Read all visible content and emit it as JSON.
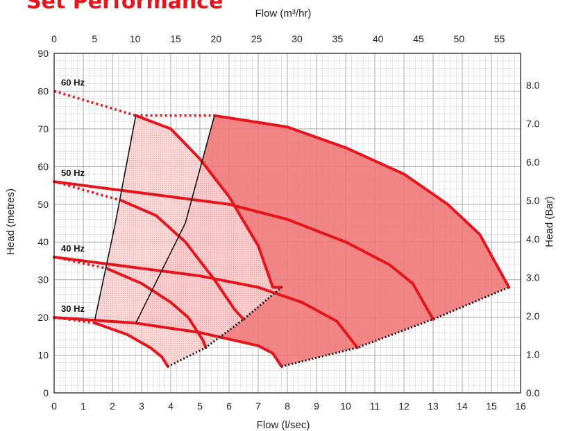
{
  "chart_data": {
    "type": "line",
    "title": "Set Performance",
    "xlabel_bottom": "Flow (l/sec)",
    "xlabel_top": "Flow (m³/hr)",
    "ylabel_left": "Head (metres)",
    "ylabel_right": "Head (Bar)",
    "x_ticks_bottom": [
      "0",
      "1",
      "2",
      "3",
      "4",
      "5",
      "6",
      "7",
      "8",
      "9",
      "10",
      "11",
      "12",
      "13",
      "14",
      "15",
      "16"
    ],
    "x_ticks_top": [
      "0",
      "5",
      "10",
      "15",
      "20",
      "25",
      "30",
      "35",
      "40",
      "45",
      "50",
      "55"
    ],
    "y_ticks_left": [
      "0",
      "10",
      "20",
      "30",
      "40",
      "50",
      "60",
      "70",
      "80",
      "90"
    ],
    "y_ticks_right": [
      "0.0",
      "1.0",
      "2.0",
      "3.0",
      "4.0",
      "5.0",
      "6.0",
      "7.0",
      "8.0"
    ],
    "xlim": [
      0,
      16
    ],
    "ylim": [
      0,
      90
    ],
    "colors": {
      "curve": "#e8141c",
      "fill_dark": "#f07070",
      "fill_light": "#f8c8c8",
      "title": "#e8141c"
    },
    "series_labels": [
      "60 Hz",
      "50 Hz",
      "40 Hz",
      "30 Hz"
    ],
    "single_pump_curves": [
      {
        "name": "60 Hz",
        "points": [
          [
            0,
            80
          ],
          [
            2.8,
            73.5
          ],
          [
            4,
            70
          ],
          [
            5,
            62
          ],
          [
            6,
            52
          ],
          [
            7,
            39
          ],
          [
            7.5,
            28
          ],
          [
            7.8,
            28
          ]
        ]
      },
      {
        "name": "50 Hz",
        "points": [
          [
            0,
            56
          ],
          [
            2.3,
            51
          ],
          [
            3.5,
            47
          ],
          [
            4.5,
            40
          ],
          [
            5.5,
            30
          ],
          [
            6.2,
            22
          ],
          [
            6.5,
            19.5
          ]
        ]
      },
      {
        "name": "40 Hz",
        "points": [
          [
            0,
            36
          ],
          [
            1.8,
            33
          ],
          [
            3,
            29
          ],
          [
            4,
            24
          ],
          [
            4.6,
            20
          ],
          [
            5.1,
            14
          ],
          [
            5.2,
            12
          ]
        ]
      },
      {
        "name": "30 Hz",
        "points": [
          [
            0,
            20
          ],
          [
            1.4,
            18.5
          ],
          [
            2.5,
            15.5
          ],
          [
            3.3,
            12
          ],
          [
            3.7,
            9.5
          ],
          [
            3.9,
            7
          ]
        ]
      }
    ],
    "two_pump_curves": [
      {
        "name": "60 Hz",
        "points": [
          [
            0,
            80
          ],
          [
            5.5,
            73.5
          ],
          [
            8,
            70.5
          ],
          [
            10,
            65
          ],
          [
            12,
            58
          ],
          [
            13.5,
            50
          ],
          [
            14.6,
            42
          ],
          [
            15.6,
            28
          ]
        ]
      },
      {
        "name": "50 Hz",
        "points": [
          [
            0,
            56
          ],
          [
            4,
            52
          ],
          [
            6,
            50
          ],
          [
            8,
            46
          ],
          [
            10,
            40
          ],
          [
            11.5,
            34
          ],
          [
            12.3,
            29
          ],
          [
            13,
            19.5
          ]
        ]
      },
      {
        "name": "40 Hz",
        "points": [
          [
            0,
            36
          ],
          [
            3,
            33
          ],
          [
            5,
            31
          ],
          [
            7,
            28
          ],
          [
            8.5,
            24
          ],
          [
            9.7,
            19
          ],
          [
            10.4,
            12
          ]
        ]
      },
      {
        "name": "30 Hz",
        "points": [
          [
            0,
            20
          ],
          [
            2.8,
            18.5
          ],
          [
            5,
            16
          ],
          [
            7,
            12.5
          ],
          [
            7.5,
            10.5
          ],
          [
            7.8,
            7
          ]
        ]
      }
    ],
    "single_pump_bep_line": [
      [
        1.4,
        19.5
      ],
      [
        2.1,
        45
      ],
      [
        2.8,
        73.5
      ]
    ],
    "two_pump_bep_line": [
      [
        2.8,
        18.5
      ],
      [
        4.5,
        45
      ],
      [
        5.5,
        73.5
      ]
    ]
  }
}
